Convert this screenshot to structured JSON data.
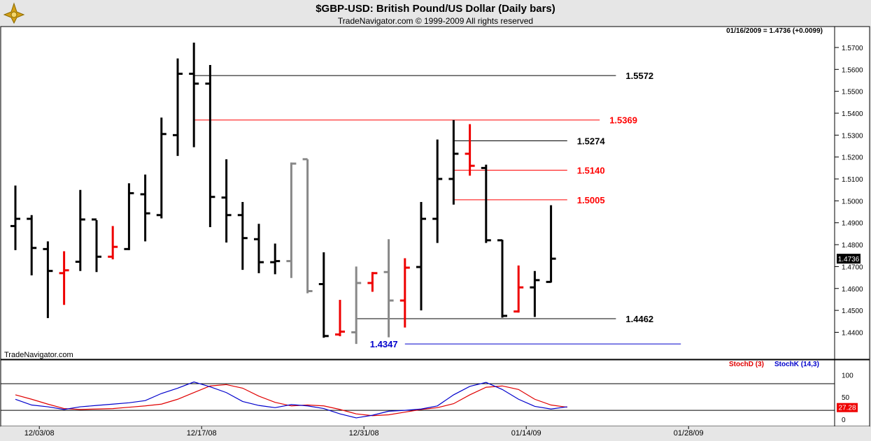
{
  "header": {
    "title": "$GBP-USD:  British Pound/US Dollar  (Daily bars)",
    "subtitle": "TradeNavigator.com © 1999-2009 All rights reserved",
    "quote": "01/16/2009 = 1.4736 (+0.0099)",
    "watermark": "TradeNavigator.com"
  },
  "chart_data": [
    {
      "type": "ohlc",
      "title": "$GBP-USD:  British Pound/US Dollar  (Daily bars)",
      "ylim": [
        1.436,
        1.5719
      ],
      "yticks": [
        "1.5700",
        "1.5600",
        "1.5500",
        "1.5400",
        "1.5300",
        "1.5200",
        "1.5100",
        "1.5000",
        "1.4900",
        "1.4800",
        "1.4700",
        "1.4600",
        "1.4500",
        "1.4400"
      ],
      "ytick_values": [
        1.57,
        1.56,
        1.55,
        1.54,
        1.53,
        1.52,
        1.51,
        1.5,
        1.49,
        1.48,
        1.47,
        1.46,
        1.45,
        1.44
      ],
      "xticks": [
        "12/03/08",
        "12/17/08",
        "12/31/08",
        "01/14/09",
        "01/28/09"
      ],
      "xtick_index": [
        1,
        11,
        21,
        31,
        41
      ],
      "last_value_label": "1.4736",
      "bars": [
        {
          "o": 1.4885,
          "h": 1.507,
          "l": 1.4775,
          "c": 1.4918,
          "color": "black"
        },
        {
          "o": 1.4918,
          "h": 1.4935,
          "l": 1.466,
          "c": 1.4785,
          "color": "black"
        },
        {
          "o": 1.478,
          "h": 1.4815,
          "l": 1.4465,
          "c": 1.468,
          "color": "black"
        },
        {
          "o": 1.467,
          "h": 1.477,
          "l": 1.4525,
          "c": 1.4683,
          "color": "red"
        },
        {
          "o": 1.4722,
          "h": 1.505,
          "l": 1.468,
          "c": 1.4915,
          "color": "black"
        },
        {
          "o": 1.4915,
          "h": 1.4912,
          "l": 1.4675,
          "c": 1.4745,
          "color": "black"
        },
        {
          "o": 1.4745,
          "h": 1.4885,
          "l": 1.4733,
          "c": 1.479,
          "color": "red"
        },
        {
          "o": 1.478,
          "h": 1.508,
          "l": 1.4775,
          "c": 1.5035,
          "color": "black"
        },
        {
          "o": 1.503,
          "h": 1.512,
          "l": 1.4815,
          "c": 1.4943,
          "color": "black"
        },
        {
          "o": 1.4935,
          "h": 1.538,
          "l": 1.492,
          "c": 1.5305,
          "color": "black"
        },
        {
          "o": 1.53,
          "h": 1.565,
          "l": 1.5205,
          "c": 1.558,
          "color": "black"
        },
        {
          "o": 1.558,
          "h": 1.5722,
          "l": 1.5245,
          "c": 1.5535,
          "color": "black"
        },
        {
          "o": 1.5535,
          "h": 1.562,
          "l": 1.488,
          "c": 1.5018,
          "color": "black"
        },
        {
          "o": 1.5015,
          "h": 1.519,
          "l": 1.481,
          "c": 1.4935,
          "color": "black"
        },
        {
          "o": 1.4935,
          "h": 1.4995,
          "l": 1.4685,
          "c": 1.483,
          "color": "black"
        },
        {
          "o": 1.4825,
          "h": 1.4895,
          "l": 1.467,
          "c": 1.472,
          "color": "black"
        },
        {
          "o": 1.472,
          "h": 1.4805,
          "l": 1.4665,
          "c": 1.4725,
          "color": "black"
        },
        {
          "o": 1.4725,
          "h": 1.5175,
          "l": 1.4648,
          "c": 1.517,
          "color": "gray"
        },
        {
          "o": 1.519,
          "h": 1.519,
          "l": 1.4578,
          "c": 1.4588,
          "color": "gray"
        },
        {
          "o": 1.462,
          "h": 1.4765,
          "l": 1.4375,
          "c": 1.4383,
          "color": "black"
        },
        {
          "o": 1.439,
          "h": 1.4548,
          "l": 1.4382,
          "c": 1.4403,
          "color": "red"
        },
        {
          "o": 1.44,
          "h": 1.47,
          "l": 1.4347,
          "c": 1.4625,
          "color": "gray"
        },
        {
          "o": 1.4625,
          "h": 1.4675,
          "l": 1.4585,
          "c": 1.467,
          "color": "red"
        },
        {
          "o": 1.4675,
          "h": 1.4825,
          "l": 1.4377,
          "c": 1.4545,
          "color": "gray"
        },
        {
          "o": 1.4545,
          "h": 1.4738,
          "l": 1.4422,
          "c": 1.4695,
          "color": "red"
        },
        {
          "o": 1.4698,
          "h": 1.4995,
          "l": 1.45,
          "c": 1.4918,
          "color": "black"
        },
        {
          "o": 1.4918,
          "h": 1.528,
          "l": 1.4808,
          "c": 1.51,
          "color": "black"
        },
        {
          "o": 1.51,
          "h": 1.5369,
          "l": 1.4983,
          "c": 1.5215,
          "color": "black"
        },
        {
          "o": 1.5215,
          "h": 1.535,
          "l": 1.5115,
          "c": 1.516,
          "color": "red"
        },
        {
          "o": 1.515,
          "h": 1.5165,
          "l": 1.4808,
          "c": 1.482,
          "color": "black"
        },
        {
          "o": 1.482,
          "h": 1.4822,
          "l": 1.4467,
          "c": 1.4475,
          "color": "black"
        },
        {
          "o": 1.4495,
          "h": 1.4705,
          "l": 1.449,
          "c": 1.4605,
          "color": "red"
        },
        {
          "o": 1.4605,
          "h": 1.468,
          "l": 1.447,
          "c": 1.4638,
          "color": "black"
        },
        {
          "o": 1.463,
          "h": 1.498,
          "l": 1.4627,
          "c": 1.4736,
          "color": "black"
        }
      ],
      "levels": [
        {
          "label": "1.5572",
          "value": 1.5572,
          "color": "#000000",
          "from": 11,
          "to": 37
        },
        {
          "label": "1.5369",
          "value": 1.5369,
          "color": "#ff0000",
          "from": 11,
          "to": 36
        },
        {
          "label": "1.5274",
          "value": 1.5274,
          "color": "#000000",
          "from": 27,
          "to": 34
        },
        {
          "label": "1.5140",
          "value": 1.514,
          "color": "#ff0000",
          "from": 27,
          "to": 34
        },
        {
          "label": "1.5005",
          "value": 1.5005,
          "color": "#ff0000",
          "from": 27,
          "to": 34
        },
        {
          "label": "1.4462",
          "value": 1.4462,
          "color": "#000000",
          "from": 21,
          "to": 37
        },
        {
          "label": "1.4347",
          "value": 1.4347,
          "color": "#0000cc",
          "from": 24,
          "to": 41
        }
      ]
    },
    {
      "type": "line",
      "ylim": [
        -5,
        110
      ],
      "yticks": [
        "100",
        "50",
        "0"
      ],
      "ytick_values": [
        100,
        50,
        0
      ],
      "guides": [
        80,
        20
      ],
      "legend": [
        "StochD (3)",
        "StochK (14,3)"
      ],
      "last_value_label": "27.28",
      "series": [
        {
          "name": "StochD (3)",
          "color": "#e00000",
          "values": [
            55,
            45,
            34,
            24,
            22,
            23,
            24,
            27,
            30,
            34,
            45,
            60,
            75,
            78,
            70,
            52,
            38,
            30,
            32,
            30,
            22,
            12,
            8,
            10,
            16,
            22,
            26,
            35,
            55,
            72,
            75,
            67,
            45,
            32,
            27
          ]
        },
        {
          "name": "StochK (14,3)",
          "color": "#0000cc",
          "values": [
            45,
            32,
            28,
            22,
            28,
            31,
            34,
            37,
            42,
            58,
            70,
            84,
            73,
            60,
            40,
            31,
            26,
            33,
            30,
            24,
            12,
            3,
            9,
            18,
            20,
            23,
            30,
            55,
            74,
            83,
            67,
            45,
            29,
            23,
            28
          ]
        }
      ]
    }
  ]
}
